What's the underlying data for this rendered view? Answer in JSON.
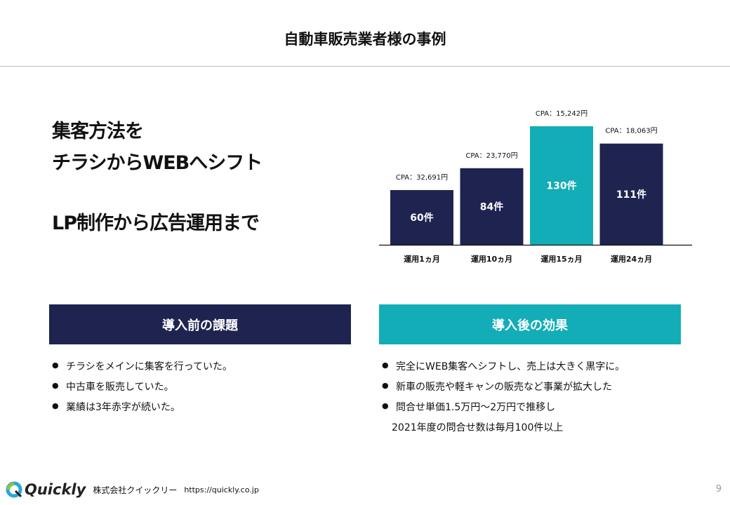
{
  "title": "自動車販売業者様の事例",
  "headlines": [
    "集客方法を",
    "チラシからWEBへシフト",
    "LP制作から広告運用まで"
  ],
  "colors": {
    "navy": "#1e2350",
    "teal": "#12adb7"
  },
  "chart_data": {
    "type": "bar",
    "categories": [
      "運用1ヵ月",
      "運用10ヵ月",
      "運用15ヵ月",
      "運用24ヵ月"
    ],
    "values": [
      60,
      84,
      130,
      111
    ],
    "value_labels": [
      "60件",
      "84件",
      "130件",
      "111件"
    ],
    "cpa_labels": [
      "CPA：32,691円",
      "CPA：23,770円",
      "CPA：15,242円",
      "CPA：18,063円"
    ],
    "highlight_index": 2,
    "ylim": [
      0,
      140
    ],
    "grid": false
  },
  "before": {
    "header": "導入前の課題",
    "items": [
      "チラシをメインに集客を行っていた。",
      "中古車を販売していた。",
      "業績は3年赤字が続いた。"
    ]
  },
  "after": {
    "header": "導入後の効果",
    "items": [
      "完全にWEB集客へシフトし、売上は大きく黒字に。",
      "新車の販売や軽キャンの販売など事業が拡大した",
      "問合せ単価1.5万円～2万円で推移し"
    ],
    "continuation": "2021年度の問合せ数は毎月100件以上"
  },
  "footer": {
    "logo": "Quickly",
    "company": "株式会社クイックリー",
    "url": "https://quickly.co.jp"
  },
  "page_number": "9"
}
